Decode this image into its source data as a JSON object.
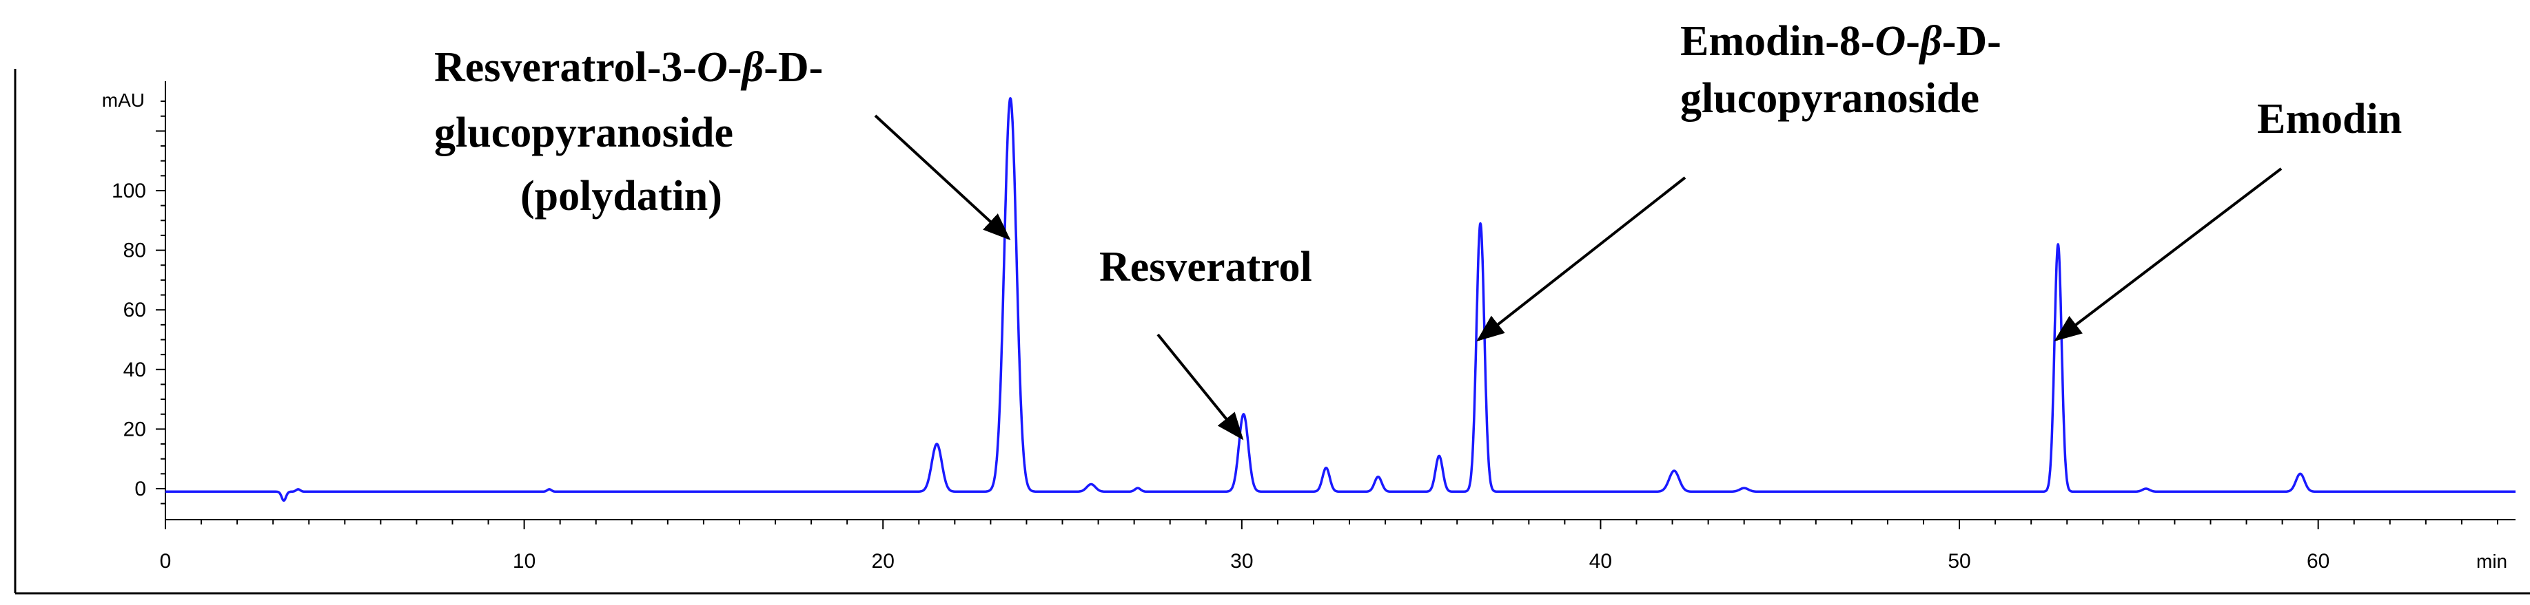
{
  "chart_data": {
    "type": "line",
    "xlabel": "min",
    "ylabel": "mAU",
    "xlim": [
      0,
      65.5
    ],
    "ylim": [
      -10,
      135
    ],
    "x_ticks": [
      "0",
      "10",
      "20",
      "30",
      "40",
      "50",
      "60"
    ],
    "y_ticks": [
      "0",
      "20",
      "40",
      "60",
      "80",
      "100"
    ],
    "grid": false,
    "baseline": -1,
    "series": [
      {
        "color": "#1a1aff",
        "peaks": [
          {
            "rt": 3.3,
            "height": -3,
            "width": 0.06
          },
          {
            "rt": 3.7,
            "height": 0.8,
            "width": 0.06
          },
          {
            "rt": 10.7,
            "height": 0.8,
            "width": 0.06
          },
          {
            "rt": 21.5,
            "height": 16,
            "width": 0.14
          },
          {
            "rt": 23.55,
            "height": 132,
            "width": 0.17
          },
          {
            "rt": 25.8,
            "height": 2.5,
            "width": 0.12
          },
          {
            "rt": 27.1,
            "height": 1.2,
            "width": 0.08
          },
          {
            "rt": 30.05,
            "height": 26,
            "width": 0.13
          },
          {
            "rt": 32.35,
            "height": 8,
            "width": 0.1
          },
          {
            "rt": 33.8,
            "height": 5,
            "width": 0.1
          },
          {
            "rt": 35.5,
            "height": 12,
            "width": 0.1
          },
          {
            "rt": 36.65,
            "height": 90,
            "width": 0.11
          },
          {
            "rt": 42.05,
            "height": 7,
            "width": 0.14
          },
          {
            "rt": 44.0,
            "height": 1.2,
            "width": 0.12
          },
          {
            "rt": 52.75,
            "height": 83,
            "width": 0.1
          },
          {
            "rt": 55.2,
            "height": 1.0,
            "width": 0.1
          },
          {
            "rt": 59.5,
            "height": 6,
            "width": 0.12
          }
        ]
      }
    ],
    "annotations": [
      {
        "lines": [
          [
            "Resveratrol-3-",
            [
              "O",
              true
            ],
            "-",
            [
              "β",
              true
            ],
            "-D-"
          ],
          [
            "glucopyranoside"
          ],
          [
            "(polydatin)"
          ]
        ],
        "target": {
          "x": 23.5,
          "y": 84
        }
      },
      {
        "lines": [
          [
            "Resveratrol"
          ]
        ],
        "target": {
          "x": 30.0,
          "y": 17
        }
      },
      {
        "lines": [
          [
            "Emodin-8-",
            [
              "O",
              true
            ],
            "-",
            [
              "β",
              true
            ],
            "-D-"
          ],
          [
            "glucopyranoside"
          ]
        ],
        "target": {
          "x": 36.6,
          "y": 50
        }
      },
      {
        "lines": [
          [
            "Emodin"
          ]
        ],
        "target": {
          "x": 52.7,
          "y": 50
        }
      }
    ]
  }
}
